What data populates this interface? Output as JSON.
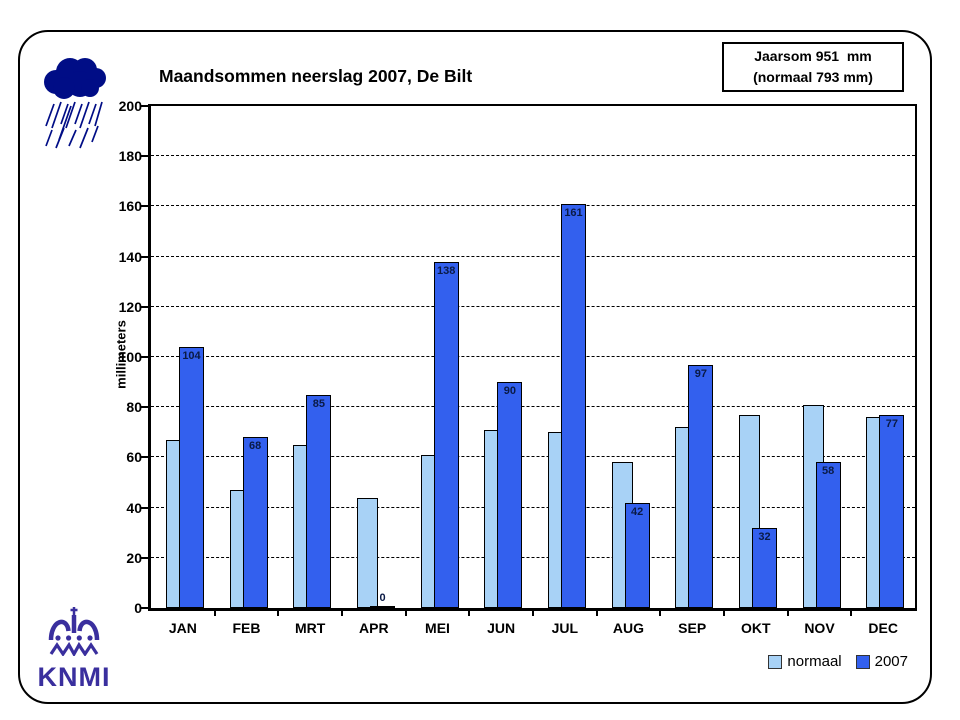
{
  "palette": {
    "normaal_bar": "#A8D2F6",
    "bar_2007": "#3360EE",
    "value_label": "#0A1A45",
    "cloud_navy": "#000D86",
    "knmi_purple": "#3A2F9E"
  },
  "header": {
    "title": "Maandsommen neerslag 2007, De Bilt"
  },
  "annual_box": {
    "line1": "Jaarsom 951  mm",
    "line2": "(normaal 793 mm)"
  },
  "logo": {
    "text": "KNMI"
  },
  "chart_data": {
    "type": "bar",
    "title": "Maandsommen neerslag 2007, De Bilt",
    "categories": [
      "JAN",
      "FEB",
      "MRT",
      "APR",
      "MEI",
      "JUN",
      "JUL",
      "AUG",
      "SEP",
      "OKT",
      "NOV",
      "DEC"
    ],
    "series": [
      {
        "name": "normaal",
        "color": "#A8D2F6",
        "values": [
          67,
          47,
          65,
          44,
          61,
          71,
          70,
          58,
          72,
          77,
          81,
          76
        ]
      },
      {
        "name": "2007",
        "color": "#3360EE",
        "values": [
          104,
          68,
          85,
          0,
          138,
          90,
          161,
          42,
          97,
          32,
          58,
          77
        ],
        "data_labels": true
      }
    ],
    "xlabel": "",
    "ylabel": "millimeters",
    "ylim": [
      0,
      200
    ],
    "ytick_step": 20,
    "grid": "horizontal-dashed",
    "legend_position": "bottom-right",
    "annual_total_mm": 951,
    "annual_normal_mm": 793
  }
}
